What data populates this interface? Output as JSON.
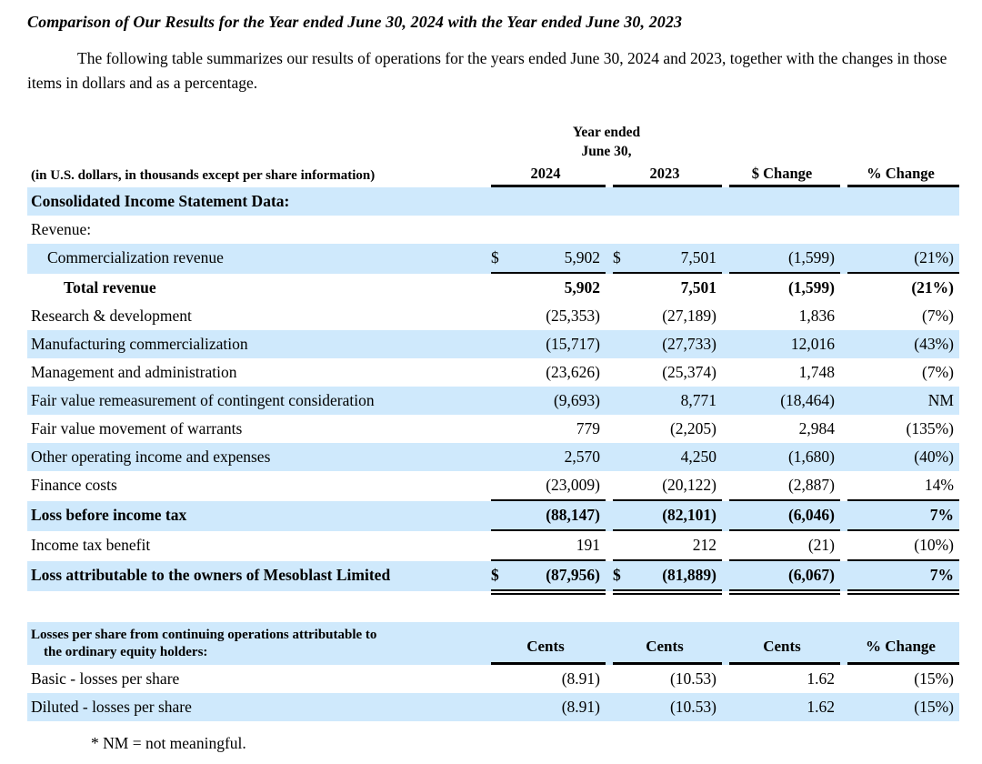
{
  "page": {
    "title": "Comparison of Our Results for the Year ended June 30, 2024 with the Year ended June 30, 2023",
    "intro": "The following table summarizes our results of operations for the years ended June 30, 2024 and 2023, together with the changes in those items in dollars and as a percentage.",
    "footnote": "* NM = not meaningful."
  },
  "colors": {
    "row_highlight": "#cfe9fc",
    "rule": "#000000"
  },
  "table1": {
    "spanner_line1": "Year ended",
    "spanner_line2": "June 30,",
    "left_header": "(in U.S. dollars, in thousands except per share information)",
    "columns": [
      "2024",
      "2023",
      "$ Change",
      "% Change"
    ],
    "rows": [
      {
        "label": "Consolidated Income Statement Data:",
        "bg": "blue",
        "bold": true,
        "values": [
          "",
          "",
          "",
          ""
        ]
      },
      {
        "label": "Revenue:",
        "bg": "white",
        "values": [
          "",
          "",
          "",
          ""
        ]
      },
      {
        "label": "Commercialization revenue",
        "bg": "blue",
        "indent": 1,
        "dollar": [
          true,
          true,
          false,
          false
        ],
        "underline": "single",
        "values": [
          "5,902",
          "7,501",
          "(1,599)",
          "(21%)"
        ]
      },
      {
        "label": "Total revenue",
        "bg": "white",
        "bold": true,
        "indent": 2,
        "values": [
          "5,902",
          "7,501",
          "(1,599)",
          "(21%)"
        ]
      },
      {
        "label": "",
        "bg": "blue",
        "values": [
          "",
          "",
          "",
          ""
        ]
      },
      {
        "label": "Research & development",
        "bg": "white",
        "values": [
          "(25,353)",
          "(27,189)",
          "1,836",
          "(7%)"
        ]
      },
      {
        "label": "Manufacturing commercialization",
        "bg": "blue",
        "values": [
          "(15,717)",
          "(27,733)",
          "12,016",
          "(43%)"
        ]
      },
      {
        "label": "Management and administration",
        "bg": "white",
        "values": [
          "(23,626)",
          "(25,374)",
          "1,748",
          "(7%)"
        ]
      },
      {
        "label": "Fair value remeasurement of contingent consideration",
        "bg": "blue",
        "values": [
          "(9,693)",
          "8,771",
          "(18,464)",
          "NM"
        ]
      },
      {
        "label": "Fair value movement of warrants",
        "bg": "white",
        "values": [
          "779",
          "(2,205)",
          "2,984",
          "(135%)"
        ]
      },
      {
        "label": "Other operating income and expenses",
        "bg": "blue",
        "values": [
          "2,570",
          "4,250",
          "(1,680)",
          "(40%)"
        ]
      },
      {
        "label": "Finance costs",
        "bg": "white",
        "underline": "single",
        "values": [
          "(23,009)",
          "(20,122)",
          "(2,887)",
          "14%"
        ]
      },
      {
        "label": "Loss before income tax",
        "bg": "blue",
        "bold": true,
        "underline": "single",
        "values": [
          "(88,147)",
          "(82,101)",
          "(6,046)",
          "7%"
        ]
      },
      {
        "label": "Income tax benefit",
        "bg": "white",
        "underline": "single",
        "values": [
          "191",
          "212",
          "(21)",
          "(10%)"
        ]
      },
      {
        "label": "Loss attributable to the owners of Mesoblast Limited",
        "bg": "blue",
        "bold": true,
        "dollar": [
          true,
          true,
          false,
          false
        ],
        "underline": "double",
        "values": [
          "(87,956)",
          "(81,889)",
          "(6,067)",
          "7%"
        ]
      }
    ]
  },
  "table2": {
    "header_label_line1": "Losses per share from continuing operations attributable to",
    "header_label_line2": "the ordinary equity holders:",
    "columns": [
      "Cents",
      "Cents",
      "Cents",
      "% Change"
    ],
    "rows": [
      {
        "label": "Basic - losses per share",
        "bg": "white",
        "values": [
          "(8.91)",
          "(10.53)",
          "1.62",
          "(15%)"
        ]
      },
      {
        "label": "Diluted - losses per share",
        "bg": "blue",
        "values": [
          "(8.91)",
          "(10.53)",
          "1.62",
          "(15%)"
        ]
      }
    ]
  }
}
